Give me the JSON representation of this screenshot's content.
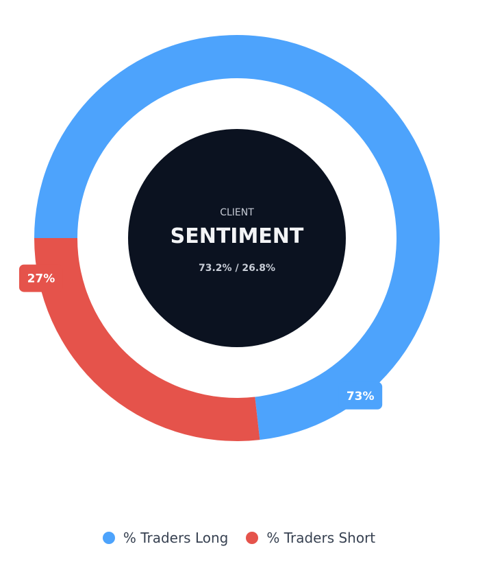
{
  "chart_data": {
    "type": "pie",
    "variant": "donut",
    "title": "",
    "series": [
      {
        "name": "% Traders Long",
        "value": 73.2,
        "label": "73%",
        "color": "#4DA3FC"
      },
      {
        "name": "% Traders Short",
        "value": 26.8,
        "label": "27%",
        "color": "#E5534B"
      }
    ],
    "center": {
      "eyebrow": "CLIENT",
      "title": "SENTIMENT",
      "ratio": "73.2% / 26.8%",
      "background": "#0B1220"
    },
    "legend_position": "bottom-center"
  }
}
